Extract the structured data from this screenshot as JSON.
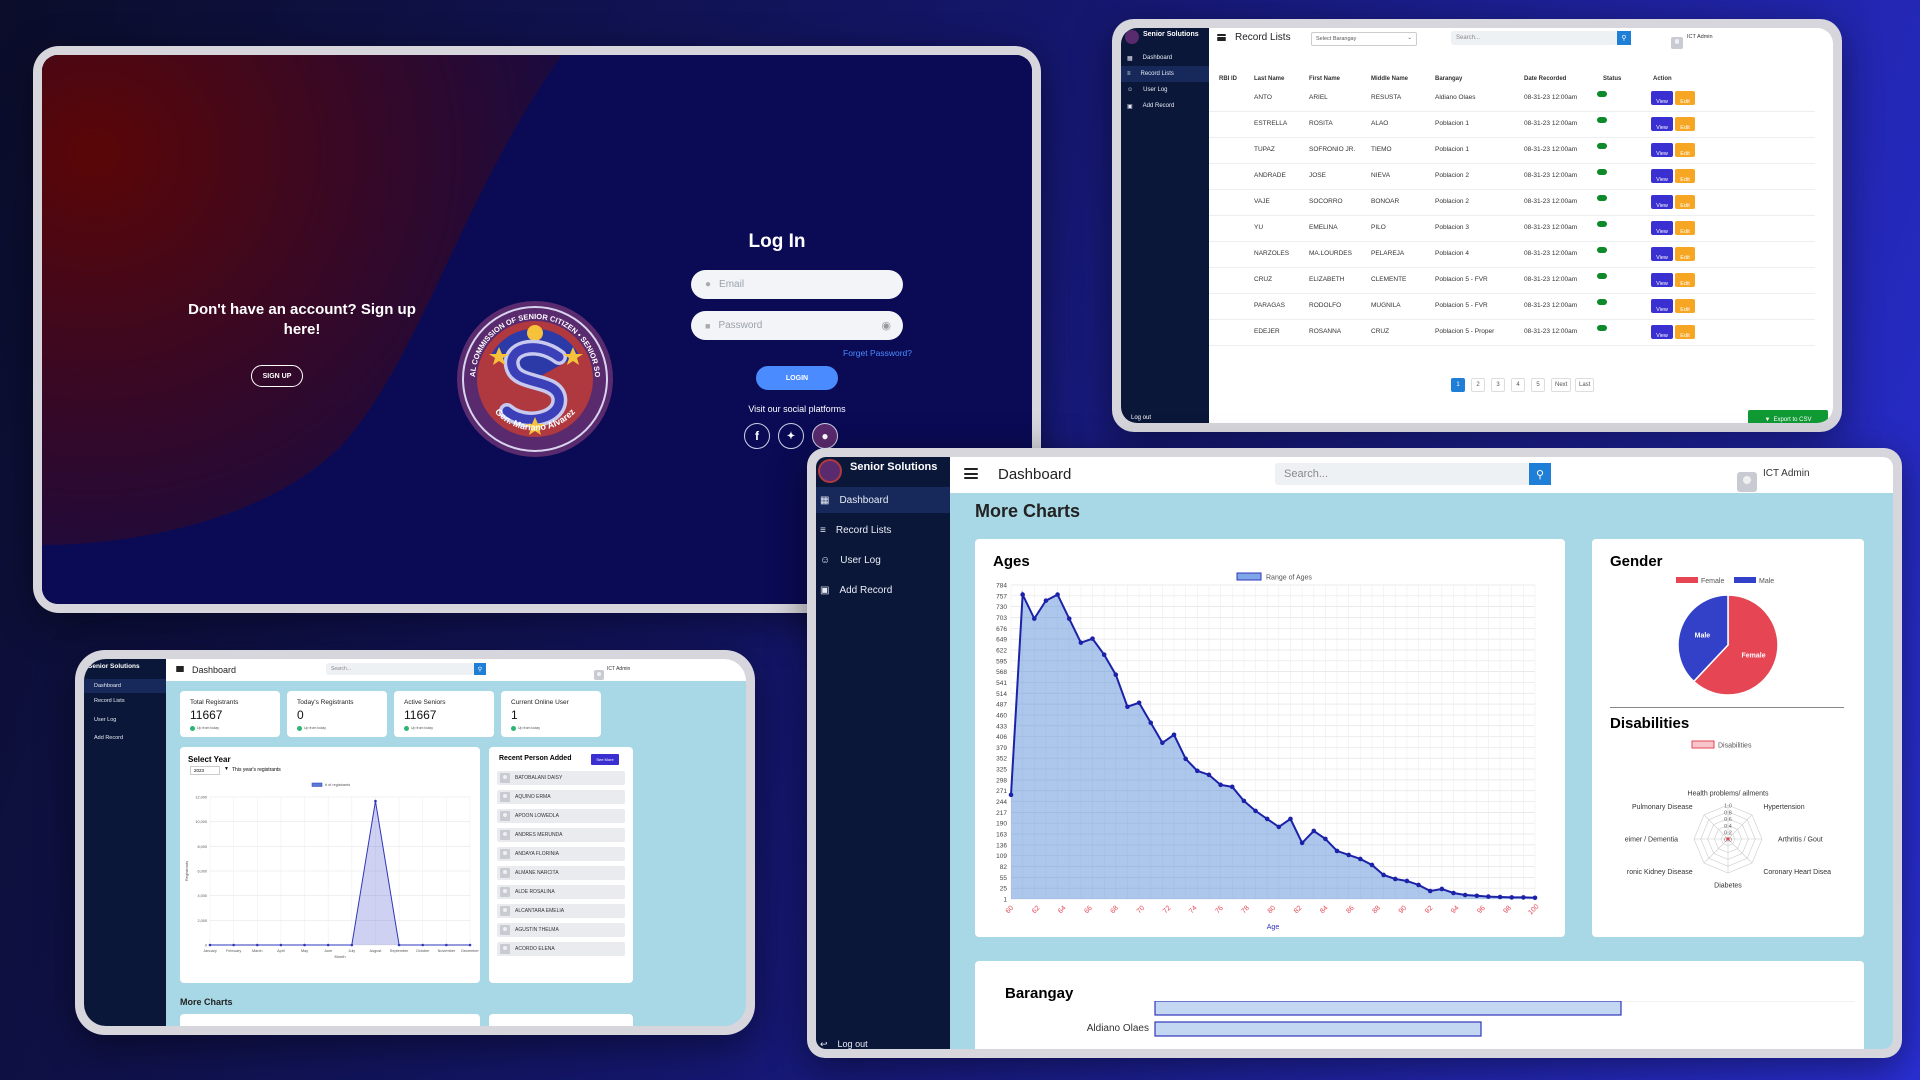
{
  "login": {
    "signup_heading": "Don't have an account? Sign up here!",
    "signup_button": "SIGN UP",
    "seal_text": "NATIONAL COMMISSION OF SENIOR CITIZEN • SENIOR SOLUTION",
    "seal_bottom": "Gen. Mariano Alvarez",
    "title": "Log In",
    "email_placeholder": "Email",
    "password_placeholder": "Password",
    "forgot": "Forget Password?",
    "login_button": "LOGIN",
    "social_label": "Visit our social platforms",
    "social": [
      "facebook-icon",
      "twitter-icon",
      "instagram-icon"
    ]
  },
  "records": {
    "brand": "Senior Solutions",
    "title": "Record Lists",
    "barangay_select": "Select Barangay",
    "search_placeholder": "Search...",
    "user": "ICT Admin",
    "nav": [
      "Dashboard",
      "Record Lists",
      "User Log",
      "Add Record"
    ],
    "headers": [
      "RBI ID",
      "Last Name",
      "First Name",
      "Middle Name",
      "Barangay",
      "Date Recorded",
      "Status",
      "Action"
    ],
    "rows": [
      {
        "last": "ANTO",
        "first": "ARIEL",
        "middle": "RESUSTA",
        "barangay": "Aldiano Olaes",
        "date": "08-31-23 12:00am",
        "status": "Active"
      },
      {
        "last": "ESTRELLA",
        "first": "ROSITA",
        "middle": "ALAO",
        "barangay": "Poblacion 1",
        "date": "08-31-23 12:00am",
        "status": "Active"
      },
      {
        "last": "TUPAZ",
        "first": "SOFRONIO JR.",
        "middle": "TIEMO",
        "barangay": "Poblacion 1",
        "date": "08-31-23 12:00am",
        "status": "Active"
      },
      {
        "last": "ANDRADE",
        "first": "JOSE",
        "middle": "NIEVA",
        "barangay": "Poblacion 2",
        "date": "08-31-23 12:00am",
        "status": "Active"
      },
      {
        "last": "VAJE",
        "first": "SOCORRO",
        "middle": "BONOAR",
        "barangay": "Poblacion 2",
        "date": "08-31-23 12:00am",
        "status": "Active"
      },
      {
        "last": "YU",
        "first": "EMELINA",
        "middle": "PILO",
        "barangay": "Poblacion 3",
        "date": "08-31-23 12:00am",
        "status": "Active"
      },
      {
        "last": "NARZOLES",
        "first": "MA.LOURDES",
        "middle": "PELAREJA",
        "barangay": "Poblacion 4",
        "date": "08-31-23 12:00am",
        "status": "Active"
      },
      {
        "last": "CRUZ",
        "first": "ELIZABETH",
        "middle": "CLEMENTE",
        "barangay": "Poblacion 5 - FVR",
        "date": "08-31-23 12:00am",
        "status": "Active"
      },
      {
        "last": "PARAGAS",
        "first": "RODOLFO",
        "middle": "MUGNILA",
        "barangay": "Poblacion 5 - FVR",
        "date": "08-31-23 12:00am",
        "status": "Active"
      },
      {
        "last": "EDEJER",
        "first": "ROSANNA",
        "middle": "CRUZ",
        "barangay": "Poblacion 5 - Proper",
        "date": "08-31-23 12:00am",
        "status": "Active"
      }
    ],
    "view_label": "View",
    "edit_label": "Edit",
    "pages": [
      "1",
      "2",
      "3",
      "4",
      "5",
      "Next",
      "Last"
    ],
    "export": "Export to CSV",
    "logout": "Log out"
  },
  "dash_small": {
    "brand": "Senior Solutions",
    "title": "Dashboard",
    "search_placeholder": "Search...",
    "user": "ICT Admin",
    "nav": [
      "Dashboard",
      "Record Lists",
      "User Log",
      "Add Record"
    ],
    "stats": [
      {
        "label": "Total Registrants",
        "value": "11667",
        "note": "Up from today"
      },
      {
        "label": "Today's Registrants",
        "value": "0",
        "note": "Up from today"
      },
      {
        "label": "Active Seniors",
        "value": "11667",
        "note": "Up from today"
      },
      {
        "label": "Current Online User",
        "value": "1",
        "note": "Up from today"
      }
    ],
    "year_title": "Select Year",
    "year_value": "2023",
    "year_caption": "This year's registrants",
    "recent_title": "Recent Person Added",
    "see_more": "See More",
    "recent": [
      "BATOBALANI DAISY",
      "AQUINO ERMA",
      "APOON LOWEDLA",
      "ANDRES MERUNDA",
      "ANDAYA FLORINIA",
      "ALMANE NARCITA",
      "ALDE ROSALINA",
      "ALCANTARA EMELIA",
      "AGUSTIN THELMA",
      "ACORDO ELENA"
    ],
    "more_charts": "More Charts"
  },
  "dash_big": {
    "brand": "Senior Solutions",
    "title": "Dashboard",
    "search_placeholder": "Search...",
    "user": "ICT Admin",
    "nav": [
      "Dashboard",
      "Record Lists",
      "User Log",
      "Add Record"
    ],
    "logout": "Log out",
    "more_charts": "More Charts",
    "ages_title": "Ages",
    "gender_title": "Gender",
    "disabilities_title": "Disabilities",
    "barangay_title": "Barangay",
    "barangay_label": "Aldiano Olaes"
  },
  "chart_data": [
    {
      "type": "line",
      "title": "",
      "series": [
        {
          "name": "# of registrants",
          "values": [
            0,
            0,
            0,
            0,
            0,
            0,
            0,
            11667,
            0,
            0,
            0,
            0
          ]
        }
      ],
      "categories": [
        "January",
        "February",
        "March",
        "April",
        "May",
        "June",
        "July",
        "August",
        "September",
        "October",
        "November",
        "December"
      ],
      "xlabel": "Month",
      "ylabel": "Registrants",
      "yticks": [
        "0",
        "2,000",
        "4,000",
        "6,000",
        "8,000",
        "10,000",
        "12,000"
      ],
      "ylim": [
        0,
        12000
      ]
    },
    {
      "type": "area",
      "title": "Ages",
      "series": [
        {
          "name": "Range of Ages",
          "values": [
            260,
            760,
            700,
            745,
            760,
            700,
            640,
            650,
            610,
            560,
            480,
            490,
            440,
            390,
            410,
            350,
            320,
            310,
            285,
            280,
            245,
            220,
            200,
            180,
            200,
            140,
            170,
            150,
            120,
            110,
            100,
            85,
            60,
            50,
            45,
            35,
            20,
            25,
            15,
            10,
            8,
            6,
            5,
            4,
            4,
            3
          ]
        }
      ],
      "xlabel": "Age",
      "xtick_labels": [
        "60",
        "62",
        "64",
        "66",
        "68",
        "70",
        "72",
        "74",
        "76",
        "78",
        "80",
        "82",
        "84",
        "86",
        "88",
        "90",
        "92",
        "94",
        "96",
        "98",
        "100"
      ],
      "yticks": [
        "1",
        "25",
        "55",
        "82",
        "109",
        "136",
        "163",
        "190",
        "217",
        "244",
        "271",
        "298",
        "325",
        "352",
        "379",
        "406",
        "433",
        "460",
        "487",
        "514",
        "541",
        "568",
        "595",
        "622",
        "649",
        "676",
        "703",
        "730",
        "757",
        "784"
      ],
      "ylim": [
        0,
        784
      ]
    },
    {
      "type": "pie",
      "title": "Gender",
      "labels": [
        "Female",
        "Male"
      ],
      "values": [
        62,
        38
      ],
      "colors": [
        "#e64553",
        "#3340c8"
      ]
    },
    {
      "type": "radar",
      "title": "Disabilities",
      "series": [
        {
          "name": "Disabilities",
          "values": [
            0,
            0,
            0,
            0,
            0,
            0,
            0,
            0
          ]
        }
      ],
      "categories": [
        "Health problems/ ailments",
        "Hypertension",
        "Arthritis / Gout",
        "Coronary Heart Disease",
        "Diabetes",
        "Chronic Kidney Disease",
        "Alzheimer / Dementia",
        "Pulmonary Disease"
      ],
      "ticks": [
        "0.0",
        "0.2",
        "0.4",
        "0.6",
        "0.8",
        "1.0"
      ],
      "visible_categories": [
        "Health problems/ ailments",
        "Hypertension",
        "Arthritis / Gout",
        "Coronary Heart Disea",
        "Diabetes",
        "ronic Kidney Disease",
        "eimer / Dementia",
        "Pulmonary Disease"
      ]
    },
    {
      "type": "bar",
      "title": "Barangay",
      "categories": [
        "Aldiano Olaes"
      ],
      "values": [
        1
      ]
    }
  ]
}
